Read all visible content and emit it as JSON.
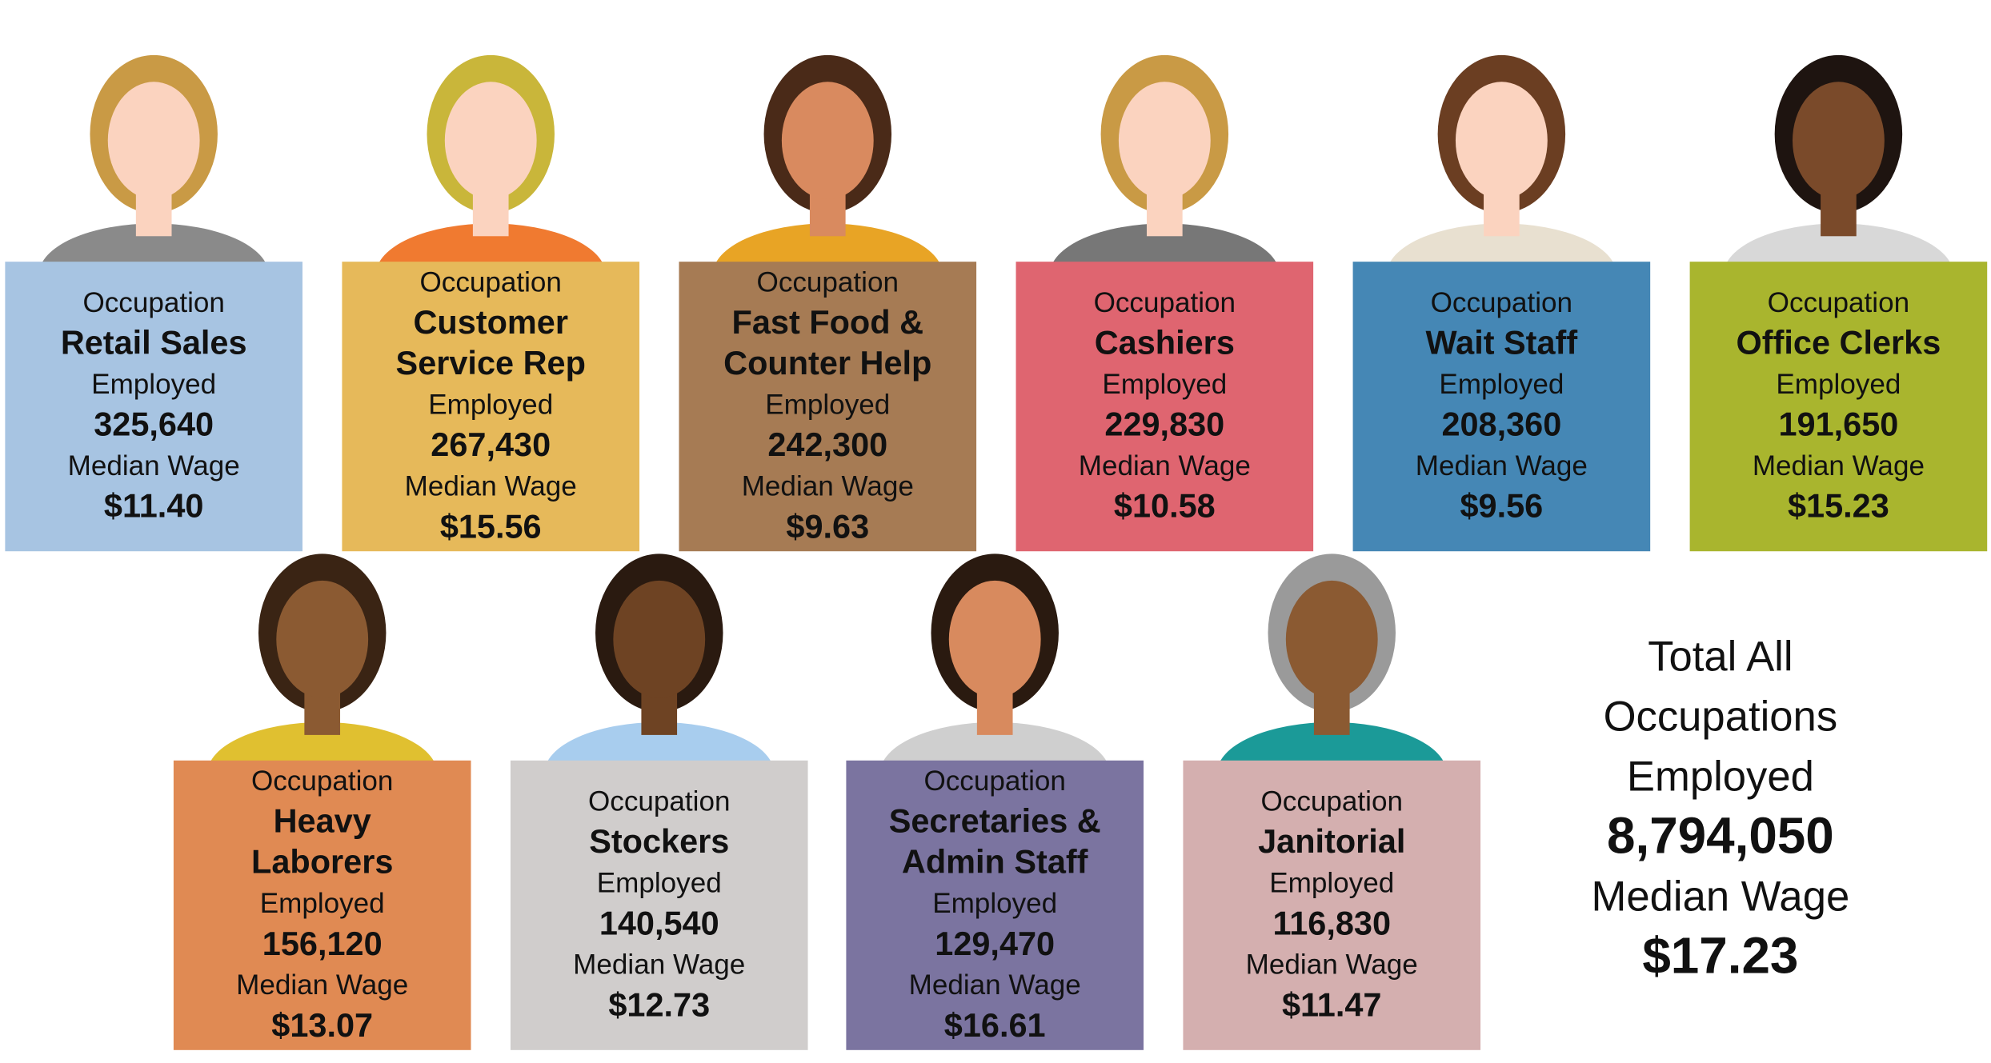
{
  "occupations": [
    {
      "heading": "Occupation",
      "name": [
        "Retail Sales"
      ],
      "employed_label": "Employed",
      "employed": "325,640",
      "wage_label": "Median Wage",
      "wage": "$11.40",
      "color": "#a7c4e2"
    },
    {
      "heading": "Occupation",
      "name": [
        "Customer",
        "Service Rep"
      ],
      "employed_label": "Employed",
      "employed": "267,430",
      "wage_label": "Median Wage",
      "wage": "$15.56",
      "color": "#e6b95a"
    },
    {
      "heading": "Occupation",
      "name": [
        "Fast Food &",
        "Counter Help"
      ],
      "employed_label": "Employed",
      "employed": "242,300",
      "wage_label": "Median Wage",
      "wage": "$9.63",
      "color": "#a67b54"
    },
    {
      "heading": "Occupation",
      "name": [
        "Cashiers"
      ],
      "employed_label": "Employed",
      "employed": "229,830",
      "wage_label": "Median Wage",
      "wage": "$10.58",
      "color": "#df6570"
    },
    {
      "heading": "Occupation",
      "name": [
        "Wait Staff"
      ],
      "employed_label": "Employed",
      "employed": "208,360",
      "wage_label": "Median Wage",
      "wage": "$9.56",
      "color": "#4587b5"
    },
    {
      "heading": "Occupation",
      "name": [
        "Office Clerks"
      ],
      "employed_label": "Employed",
      "employed": "191,650",
      "wage_label": "Median Wage",
      "wage": "$15.23",
      "color": "#a9b52e"
    },
    {
      "heading": "Occupation",
      "name": [
        "Heavy",
        "Laborers"
      ],
      "employed_label": "Employed",
      "employed": "156,120",
      "wage_label": "Median Wage",
      "wage": "$13.07",
      "color": "#e08a53"
    },
    {
      "heading": "Occupation",
      "name": [
        "Stockers"
      ],
      "employed_label": "Employed",
      "employed": "140,540",
      "wage_label": "Median Wage",
      "wage": "$12.73",
      "color": "#d0cdcc"
    },
    {
      "heading": "Occupation",
      "name": [
        "Secretaries &",
        "Admin Staff"
      ],
      "employed_label": "Employed",
      "employed": "129,470",
      "wage_label": "Median Wage",
      "wage": "$16.61",
      "color": "#7b74a0"
    },
    {
      "heading": "Occupation",
      "name": [
        "Janitorial"
      ],
      "employed_label": "Employed",
      "employed": "116,830",
      "wage_label": "Median Wage",
      "wage": "$11.47",
      "color": "#d4afaf"
    }
  ],
  "total": {
    "title": [
      "Total All",
      "Occupations"
    ],
    "employed_label": "Employed",
    "employed": "8,794,050",
    "wage_label": "Median Wage",
    "wage": "$17.23"
  }
}
